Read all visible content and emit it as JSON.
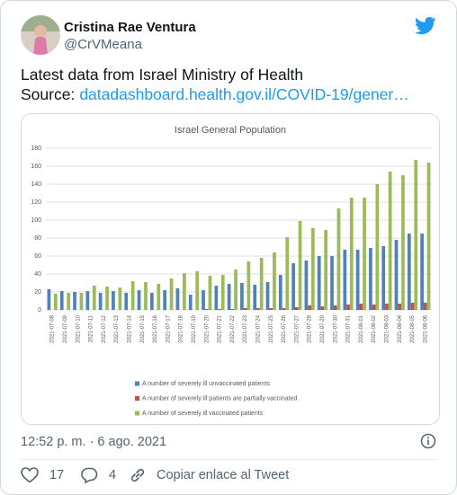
{
  "tweet": {
    "author": {
      "name": "Cristina Rae Ventura",
      "handle": "@CrVMeana"
    },
    "text": {
      "line1": "Latest data from Israel Ministry of Health",
      "source_label": "Source:",
      "link": "datadashboard.health.gov.il/COVID-19/gener…"
    },
    "timestamp": "12:52 p. m. · 6 ago. 2021",
    "likes": 17,
    "replies": 4,
    "copy_link": "Copiar enlace al Tweet"
  },
  "chart_data": {
    "type": "bar",
    "title": "Israel General Population",
    "categories": [
      "2021-07-08",
      "2021-07-09",
      "2021-07-10",
      "2021-07-11",
      "2021-07-12",
      "2021-07-13",
      "2021-07-14",
      "2021-07-15",
      "2021-07-16",
      "2021-07-17",
      "2021-07-18",
      "2021-07-19",
      "2021-07-20",
      "2021-07-21",
      "2021-07-22",
      "2021-07-23",
      "2021-07-24",
      "2021-07-25",
      "2021-07-26",
      "2021-07-27",
      "2021-07-28",
      "2021-07-29",
      "2021-07-30",
      "2021-07-31",
      "2021-08-01",
      "2021-08-02",
      "2021-08-03",
      "2021-08-04",
      "2021-08-05",
      "2021-08-06"
    ],
    "series": [
      {
        "name": "A number of severely ill unvaccinated patients",
        "color": "#4f81bd",
        "values": [
          23,
          21,
          20,
          21,
          19,
          21,
          19,
          22,
          19,
          22,
          24,
          17,
          22,
          27,
          29,
          30,
          28,
          31,
          39,
          52,
          55,
          60,
          60,
          67,
          67,
          69,
          71,
          78,
          85,
          85
        ]
      },
      {
        "name": "A number of severely ill patients are partially vaccinated",
        "color": "#c0504d",
        "values": [
          0,
          0,
          0,
          0,
          0,
          0,
          0,
          0,
          0,
          0,
          0,
          0,
          1,
          1,
          1,
          2,
          2,
          2,
          2,
          3,
          5,
          4,
          5,
          6,
          7,
          6,
          7,
          7,
          8,
          8
        ]
      },
      {
        "name": "A number of severely ill vaccinated patients",
        "color": "#9bbb59",
        "values": [
          18,
          19,
          19,
          27,
          26,
          25,
          32,
          31,
          29,
          35,
          41,
          43,
          38,
          39,
          45,
          54,
          58,
          64,
          81,
          99,
          91,
          89,
          113,
          125,
          125,
          140,
          154,
          150,
          167,
          164
        ]
      }
    ],
    "ylim": [
      0,
      180
    ],
    "yticks": [
      0,
      20,
      40,
      60,
      80,
      100,
      120,
      140,
      160,
      180
    ],
    "grid": true
  }
}
